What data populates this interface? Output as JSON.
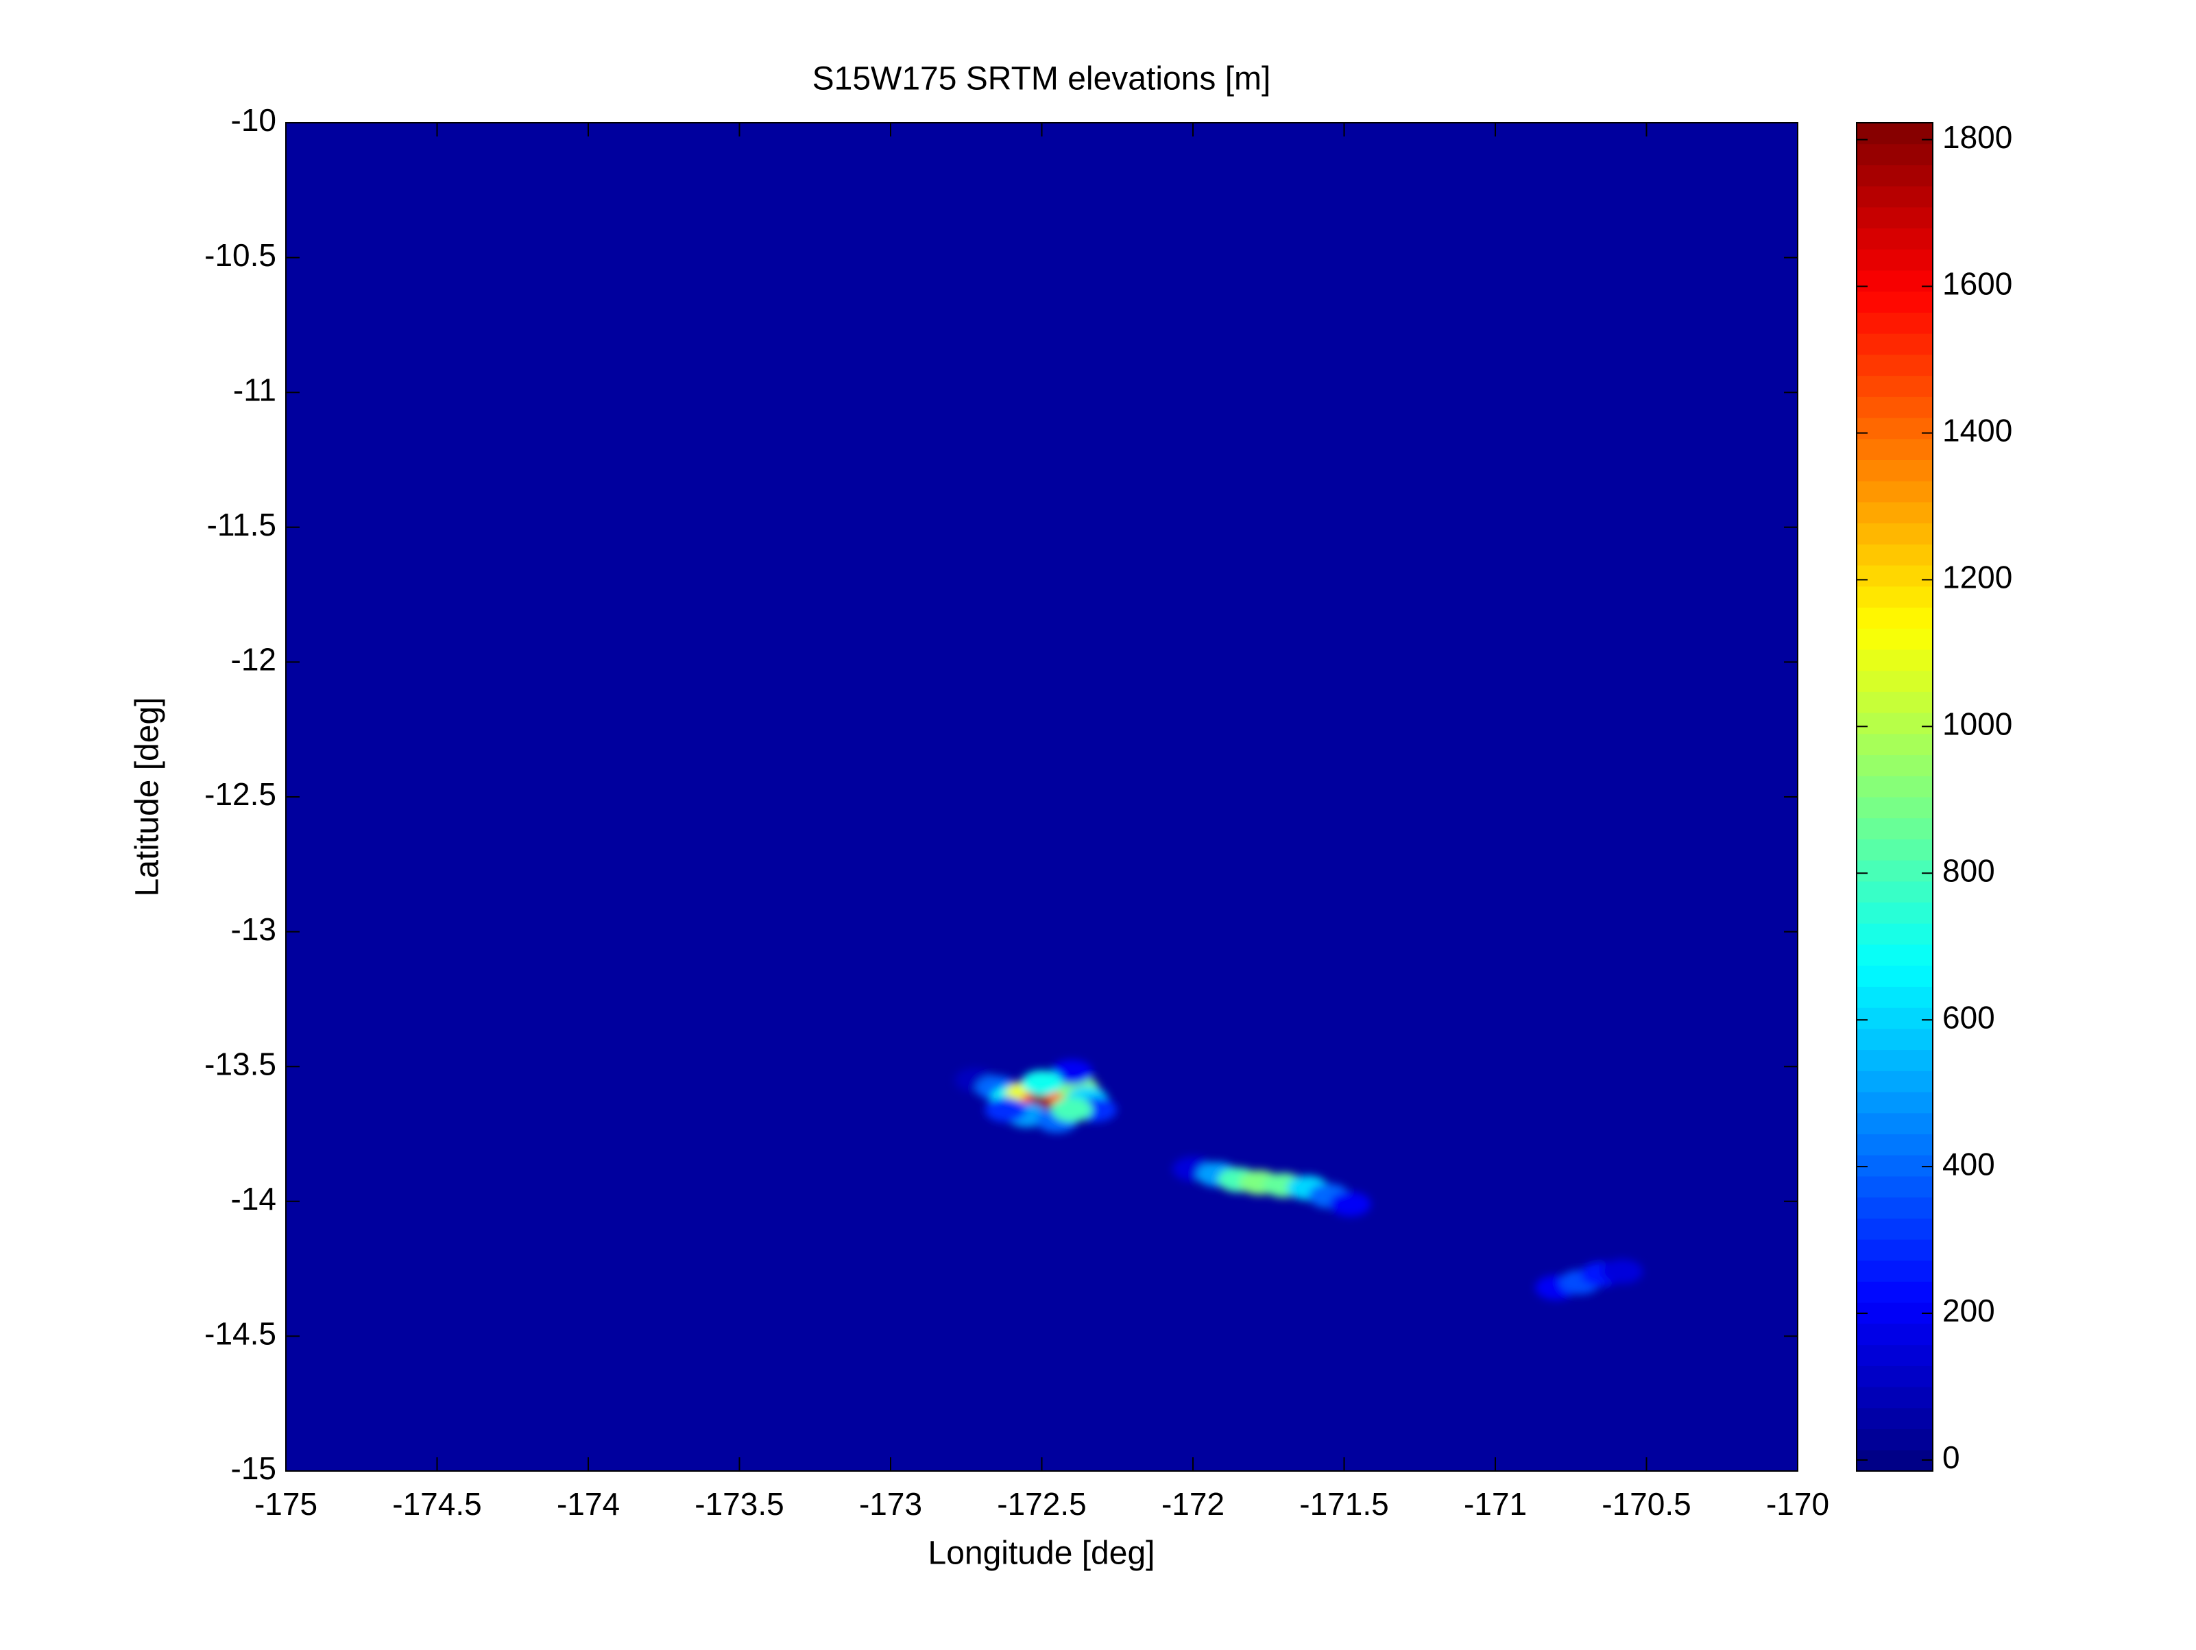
{
  "chart_data": {
    "type": "heatmap",
    "title": "S15W175 SRTM elevations [m]",
    "x_label": "Longitude [deg]",
    "y_label": "Latitude [deg]",
    "colormap": "jet",
    "x": [
      -172.72,
      -172.65,
      -172.6,
      -172.55,
      -172.5,
      -172.47,
      -172.42,
      -172.38,
      -172.35,
      -172.32,
      -172.55,
      -172.45,
      -172.4,
      -172.5,
      -172.62,
      -172.4,
      -172.0,
      -171.92,
      -171.85,
      -171.78,
      -171.7,
      -171.62,
      -171.55,
      -171.48,
      -170.8,
      -170.72,
      -170.65,
      -170.58
    ],
    "y": [
      -13.55,
      -13.58,
      -13.62,
      -13.6,
      -13.63,
      -13.62,
      -13.6,
      -13.58,
      -13.62,
      -13.66,
      -13.68,
      -13.7,
      -13.52,
      -13.56,
      -13.66,
      -13.66,
      -13.88,
      -13.9,
      -13.92,
      -13.93,
      -13.94,
      -13.95,
      -13.98,
      -14.01,
      -14.32,
      -14.3,
      -14.27,
      -14.26
    ],
    "values": [
      100,
      400,
      700,
      1100,
      1500,
      1800,
      1400,
      900,
      600,
      300,
      500,
      400,
      200,
      700,
      300,
      800,
      150,
      500,
      800,
      900,
      850,
      600,
      400,
      200,
      200,
      350,
      250,
      150
    ],
    "xlim": [
      -175,
      -170
    ],
    "xticks": [
      -175,
      -174.5,
      -174,
      -173.5,
      -173,
      -172.5,
      -172,
      -171.5,
      -171,
      -170.5,
      -170
    ],
    "ylim": [
      -15,
      -10
    ],
    "yticks": [
      -15,
      -14.5,
      -14,
      -13.5,
      -13,
      -12.5,
      -12,
      -11.5,
      -11,
      -10.5,
      -10
    ],
    "clim": [
      -15,
      1823
    ],
    "cticks": [
      0,
      200,
      400,
      600,
      800,
      1000,
      1200,
      1400,
      1600,
      1800
    ]
  }
}
